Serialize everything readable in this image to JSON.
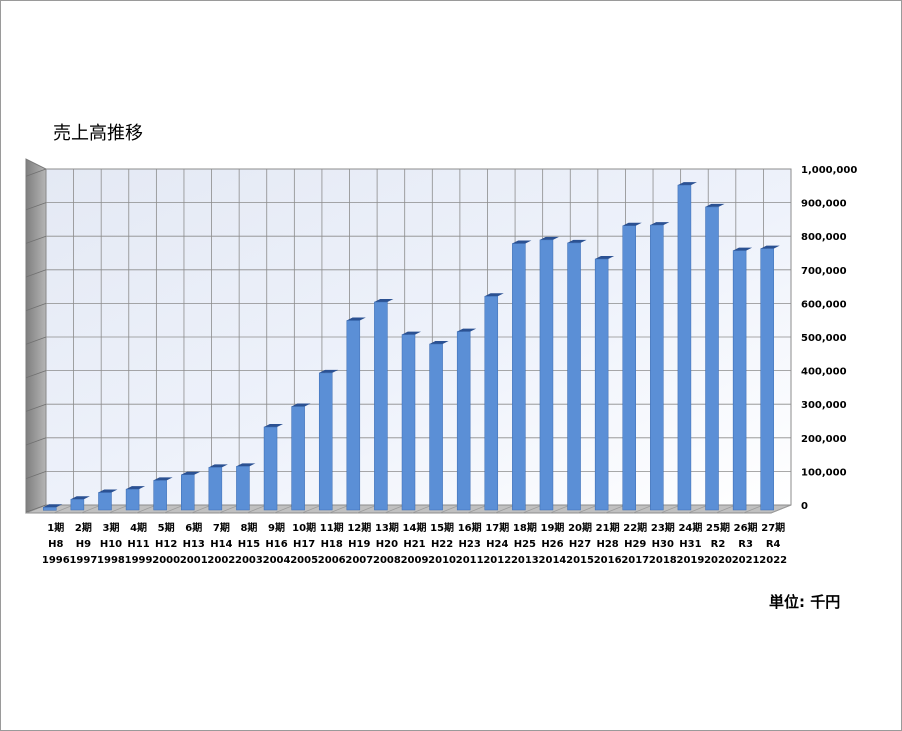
{
  "chart_data": {
    "type": "bar",
    "title": "売上高推移",
    "unit": "単位: 千円",
    "ylim": [
      0,
      1000000
    ],
    "y_ticks": [
      "0",
      "100,000",
      "200,000",
      "300,000",
      "400,000",
      "500,000",
      "600,000",
      "700,000",
      "800,000",
      "900,000",
      "1,000,000"
    ],
    "categories": [
      [
        "1期",
        "H8",
        "1996"
      ],
      [
        "2期",
        "H9",
        "1997"
      ],
      [
        "3期",
        "H10",
        "1998"
      ],
      [
        "4期",
        "H11",
        "1999"
      ],
      [
        "5期",
        "H12",
        "2000"
      ],
      [
        "6期",
        "H13",
        "2001"
      ],
      [
        "7期",
        "H14",
        "2002"
      ],
      [
        "8期",
        "H15",
        "2003"
      ],
      [
        "9期",
        "H16",
        "2004"
      ],
      [
        "10期",
        "H17",
        "2005"
      ],
      [
        "11期",
        "H18",
        "2006"
      ],
      [
        "12期",
        "H19",
        "2007"
      ],
      [
        "13期",
        "H20",
        "2008"
      ],
      [
        "14期",
        "H21",
        "2009"
      ],
      [
        "15期",
        "H22",
        "2010"
      ],
      [
        "16期",
        "H23",
        "2011"
      ],
      [
        "17期",
        "H24",
        "2012"
      ],
      [
        "18期",
        "H25",
        "2013"
      ],
      [
        "19期",
        "H26",
        "2014"
      ],
      [
        "20期",
        "H27",
        "2015"
      ],
      [
        "21期",
        "H28",
        "2016"
      ],
      [
        "22期",
        "H29",
        "2017"
      ],
      [
        "23期",
        "H30",
        "2018"
      ],
      [
        "24期",
        "H31",
        "2019"
      ],
      [
        "25期",
        "R2",
        "2020"
      ],
      [
        "26期",
        "R3",
        "2021"
      ],
      [
        "27期",
        "R4",
        "2022"
      ]
    ],
    "values": [
      8000,
      32000,
      52000,
      62000,
      88000,
      105000,
      127000,
      130000,
      247000,
      308000,
      408000,
      564000,
      619000,
      522000,
      494000,
      531000,
      636000,
      793000,
      804000,
      795000,
      747000,
      846000,
      848000,
      967000,
      902000,
      772000,
      778000
    ],
    "grid": true,
    "legend": "none",
    "colors": {
      "bar_front": "#5b8fd6",
      "bar_side": "#1f3d6e",
      "bar_top": "#2b5192",
      "back_wall": "#eef2fb",
      "side_wall": "#9a9a9a",
      "floor": "#c0c0c0",
      "grid": "#8c8c8c"
    }
  }
}
